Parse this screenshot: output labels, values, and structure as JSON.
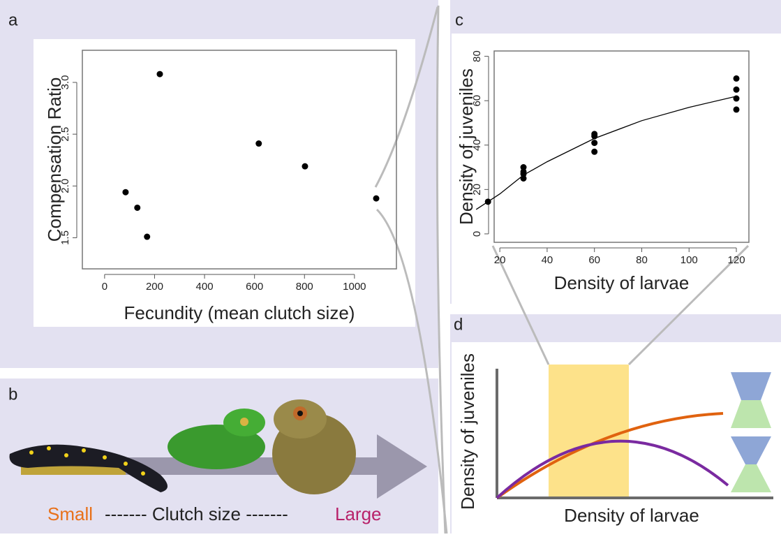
{
  "chart_data": [
    {
      "type": "scatter",
      "label": "a",
      "x_label": "Fecundity (mean clutch size)",
      "y_label": "Compensation Ratio",
      "x": [
        84,
        131,
        170,
        221,
        617,
        802,
        1087
      ],
      "values": [
        1.94,
        1.79,
        1.51,
        3.08,
        2.41,
        2.19,
        1.88
      ],
      "color": "#000000",
      "xlim": [
        -89,
        1168
      ],
      "ylim": [
        1.2,
        3.31
      ],
      "xticks": [
        0,
        200,
        400,
        600,
        800,
        1000
      ],
      "yticks": [
        1.5,
        {
          "value": 2,
          "label": "2.0"
        },
        2.5,
        {
          "value": 3,
          "label": "3.0"
        }
      ]
    },
    {
      "type": "scatter",
      "label": "c",
      "x_label": "Density of larvae",
      "y_label": "Density of juveniles",
      "x": [
        15,
        30,
        30,
        30,
        30,
        60,
        60,
        60,
        60,
        120,
        120,
        120,
        120
      ],
      "values": [
        14.5,
        30,
        28,
        27,
        25,
        45,
        44,
        41,
        37,
        70,
        65,
        61,
        56
      ],
      "color": "#000000",
      "fit": {
        "x": [
          10,
          20,
          30,
          40,
          60,
          80,
          100,
          120
        ],
        "values": [
          11,
          18,
          26.5,
          32.5,
          43,
          51,
          57,
          62
        ]
      },
      "xlim": [
        17.6,
        125.3
      ],
      "ylim": [
        -3.8,
        82.4
      ],
      "xticks": [
        20,
        40,
        60,
        80,
        100,
        120
      ],
      "yticks": [
        0,
        20,
        40,
        60,
        80
      ]
    }
  ],
  "panel_b": {
    "label": "b",
    "small": "Small",
    "middle": "------- Clutch size -------",
    "large": "Large"
  },
  "panel_d": {
    "label": "d",
    "y_label": "Density of juveniles",
    "x_label": "Density of larvae"
  }
}
